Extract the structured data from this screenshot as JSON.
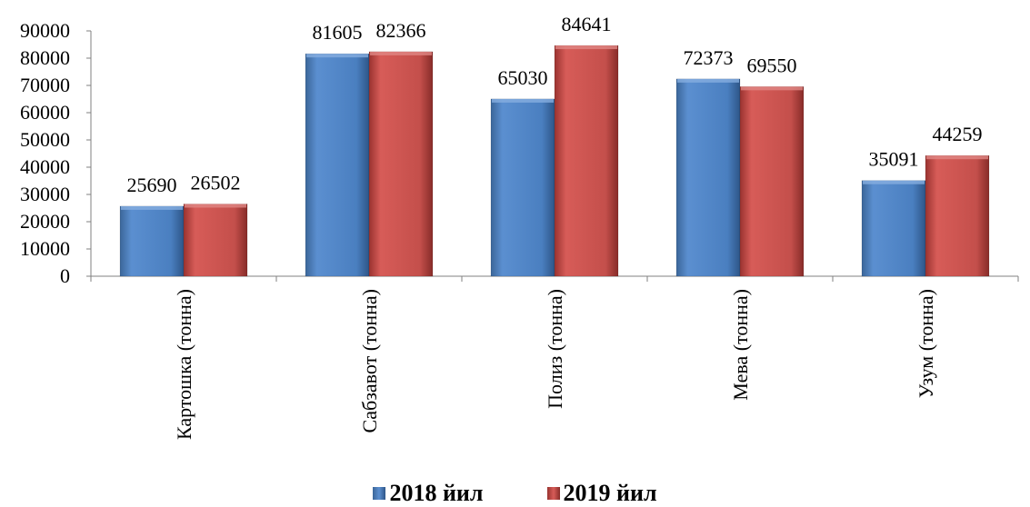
{
  "chart_data": {
    "type": "bar",
    "categories": [
      "Картошка (тонна)",
      "Сабзавот (тонна)",
      "Полиз (тонна)",
      "Мева (тонна)",
      "Узум (тонна)"
    ],
    "series": [
      {
        "name": "2018 йил",
        "values": [
          25690,
          81605,
          65030,
          72373,
          35091
        ],
        "color": "#4f81bd"
      },
      {
        "name": "2019 йил",
        "values": [
          26502,
          82366,
          84641,
          69550,
          44259
        ],
        "color": "#c0504d"
      }
    ],
    "ylim": [
      0,
      90000
    ],
    "yticks": [
      "0",
      "10000",
      "20000",
      "30000",
      "40000",
      "50000",
      "60000",
      "70000",
      "80000",
      "90000"
    ],
    "legend_position": "bottom",
    "grid": false
  }
}
